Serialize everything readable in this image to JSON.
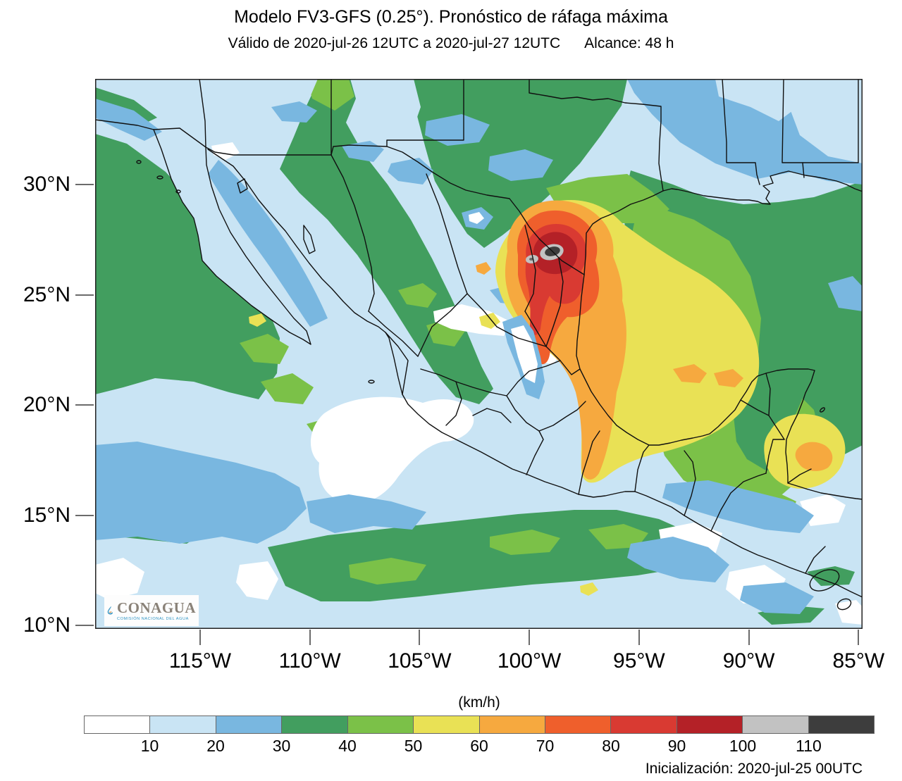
{
  "header": {
    "title": "Modelo FV3-GFS (0.25°). Pronóstico de ráfaga máxima",
    "valid_label": "Válido de 2020-jul-26 12UTC a 2020-jul-27 12UTC",
    "reach_label": "Alcance: 48 h"
  },
  "map": {
    "lat_ticks": [
      "30°N",
      "25°N",
      "20°N",
      "15°N",
      "10°N"
    ],
    "lon_ticks": [
      "115°W",
      "110°W",
      "105°W",
      "100°W",
      "95°W",
      "90°W",
      "85°W"
    ],
    "logo": {
      "name": "CONAGUA",
      "subtitle": "COMISIÓN NACIONAL DEL AGUA"
    }
  },
  "colorbar": {
    "unit": "(km/h)",
    "tick_labels": [
      "10",
      "20",
      "30",
      "40",
      "50",
      "60",
      "70",
      "80",
      "90",
      "100",
      "110"
    ],
    "colors": [
      "#ffffff",
      "#c9e4f4",
      "#79b7e0",
      "#429e5f",
      "#7bc148",
      "#e9e155",
      "#f6a93f",
      "#ef5f2c",
      "#d93a32",
      "#b42127",
      "#c2c2c2",
      "#3d3d3d"
    ],
    "legend_meaning": "wind gust speed bins in km/h, < 10 (white) to > 110 (dark gray)"
  },
  "footer": {
    "init_label": "Inicialización: 2020-jul-25 00UTC"
  }
}
